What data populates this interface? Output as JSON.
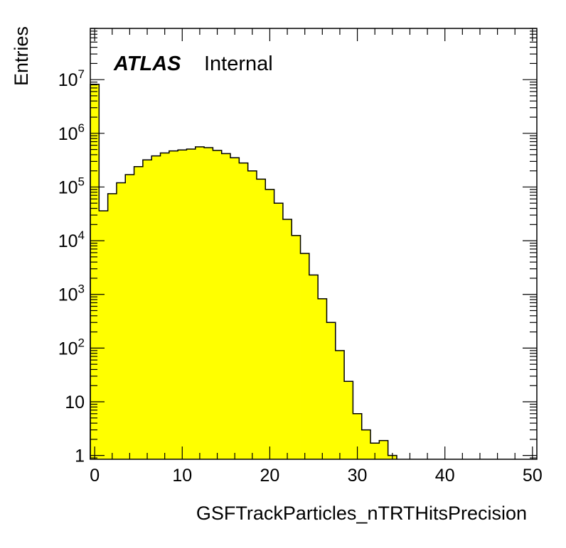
{
  "chart_data": {
    "type": "histogram",
    "xlabel": "GSFTrackParticles_nTRTHitsPrecision",
    "ylabel": "Entries",
    "label_bold": "ATLAS",
    "label_sub": "Internal",
    "yscale": "log",
    "xlim": [
      -0.5,
      50.5
    ],
    "ylim": [
      0.85,
      90000000
    ],
    "bin_width": 1,
    "bin_start": -0.5,
    "x_ticks": [
      0,
      10,
      20,
      30,
      40,
      50
    ],
    "x_tick_labels": [
      "0",
      "10",
      "20",
      "30",
      "40",
      "50"
    ],
    "y_ticks": [
      {
        "value": 1,
        "base": "1",
        "exp": ""
      },
      {
        "value": 10,
        "base": "10",
        "exp": ""
      },
      {
        "value": 100,
        "base": "10",
        "exp": "2"
      },
      {
        "value": 1000,
        "base": "10",
        "exp": "3"
      },
      {
        "value": 10000,
        "base": "10",
        "exp": "4"
      },
      {
        "value": 100000,
        "base": "10",
        "exp": "5"
      },
      {
        "value": 1000000,
        "base": "10",
        "exp": "6"
      },
      {
        "value": 10000000,
        "base": "10",
        "exp": "7"
      }
    ],
    "fill_color": "#ffff00",
    "line_color": "#000000",
    "values": [
      8200000,
      36000,
      75000,
      120000,
      170000,
      240000,
      320000,
      380000,
      430000,
      470000,
      490000,
      510000,
      560000,
      540000,
      480000,
      420000,
      350000,
      280000,
      200000,
      140000,
      90000,
      50000,
      25000,
      12500,
      5800,
      2300,
      830,
      300,
      90,
      24,
      6,
      3,
      1.7,
      1.9,
      1
    ]
  }
}
